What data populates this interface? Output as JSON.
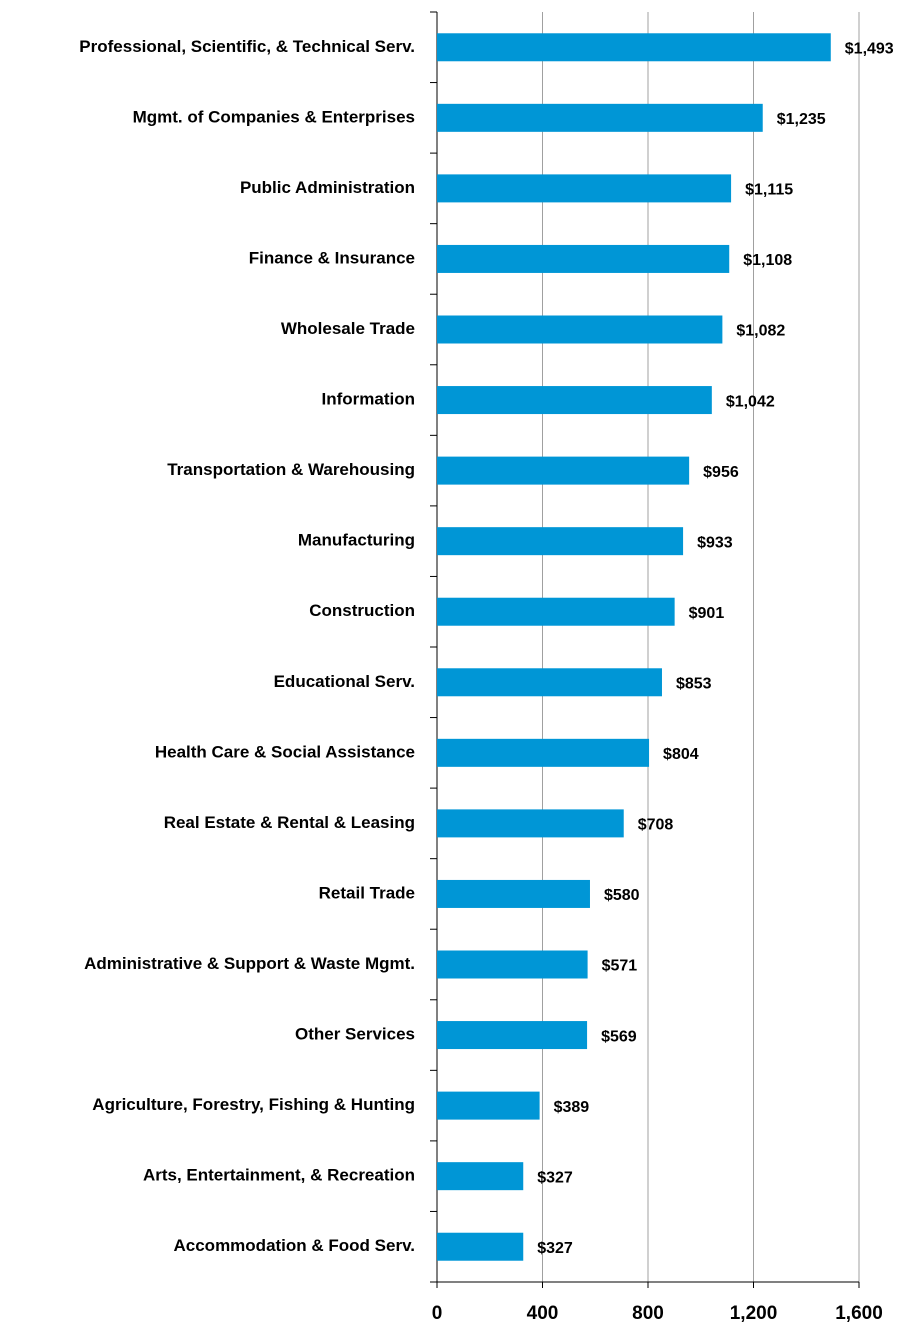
{
  "chart_data": {
    "type": "barh",
    "categories": [
      "Professional, Scientific, & Technical Serv.",
      "Mgmt. of Companies & Enterprises",
      "Public Administration",
      "Finance & Insurance",
      "Wholesale Trade",
      "Information",
      "Transportation & Warehousing",
      "Manufacturing",
      "Construction",
      "Educational Serv.",
      "Health Care & Social Assistance",
      "Real Estate & Rental & Leasing",
      "Retail Trade",
      "Administrative & Support & Waste Mgmt.",
      "Other Services",
      "Agriculture, Forestry, Fishing & Hunting",
      "Arts, Entertainment, & Recreation",
      "Accommodation & Food Serv."
    ],
    "values": [
      1493,
      1235,
      1115,
      1108,
      1082,
      1042,
      956,
      933,
      901,
      853,
      804,
      708,
      580,
      571,
      569,
      389,
      327,
      327
    ],
    "value_labels": [
      "$1,493",
      "$1,235",
      "$1,115",
      "$1,108",
      "$1,082",
      "$1,042",
      "$956",
      "$933",
      "$901",
      "$853",
      "$804",
      "$708",
      "$580",
      "$571",
      "$569",
      "$389",
      "$327",
      "$327"
    ],
    "color": "#0096d6",
    "xlim": [
      0,
      1600
    ],
    "xticks": [
      0,
      400,
      800,
      {
        "value": 1200,
        "label": "1,200"
      },
      {
        "value": 1600,
        "label": "1,600"
      }
    ],
    "grid": true
  }
}
